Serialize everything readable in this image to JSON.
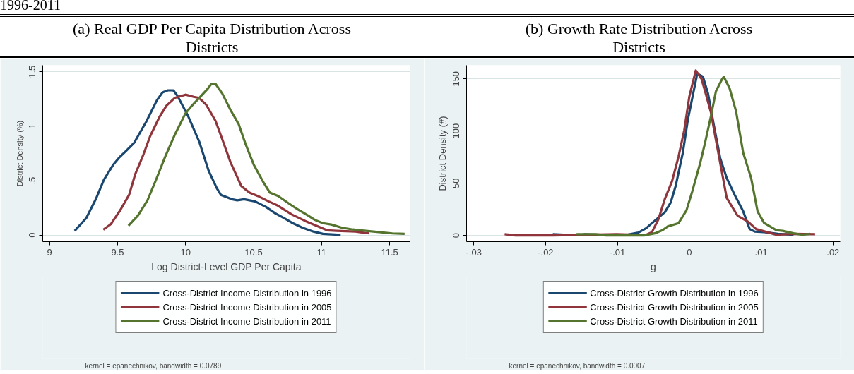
{
  "chart_data": [
    {
      "type": "line",
      "title": "(a) Real GDP Per Capita Distribution Across Districts",
      "xlabel": "Log District-Level GDP Per Capita",
      "ylabel": "District Density (%)",
      "annotations": [
        "1996-2011",
        "kernel = epanechnikov, bandwidth = 0.0789"
      ],
      "xlim": [
        8.95,
        11.65
      ],
      "ylim": [
        -0.06,
        1.56
      ],
      "xticks": [
        9,
        9.5,
        10,
        10.5,
        11,
        11.5
      ],
      "yticks": [
        0,
        {
          "value": 0.5,
          "label": ".5"
        },
        1,
        1.5
      ],
      "grid": "y",
      "legend": "bottom",
      "line_style": "solid",
      "marker": "none",
      "series": [
        {
          "name": "Cross-District Income Distribution in 1996",
          "color": "#1a476f",
          "x": [
            9.185,
            9.27,
            9.34,
            9.4,
            9.47,
            9.51,
            9.56,
            9.623,
            9.71,
            9.79,
            9.83,
            9.87,
            9.91,
            9.94,
            10.02,
            10.1,
            10.17,
            10.23,
            10.26,
            10.34,
            10.38,
            10.43,
            10.51,
            10.59,
            10.66,
            10.72,
            10.78,
            10.86,
            10.94,
            11.01,
            11.14
          ],
          "values": [
            0.04,
            0.157,
            0.33,
            0.51,
            0.65,
            0.71,
            0.77,
            0.85,
            1.04,
            1.24,
            1.31,
            1.33,
            1.33,
            1.28,
            1.09,
            0.86,
            0.59,
            0.43,
            0.37,
            0.33,
            0.32,
            0.33,
            0.31,
            0.26,
            0.2,
            0.16,
            0.115,
            0.068,
            0.033,
            0.012,
            0.002
          ]
        },
        {
          "name": "Cross-District Income Distribution in 2005",
          "color": "#90353b",
          "x": [
            9.395,
            9.45,
            9.52,
            9.585,
            9.63,
            9.69,
            9.74,
            9.81,
            9.86,
            9.92,
            10.0,
            10.06,
            10.1,
            10.15,
            10.22,
            10.27,
            10.33,
            10.41,
            10.47,
            10.53,
            10.61,
            10.68,
            10.78,
            10.88,
            10.96,
            11.04,
            11.11,
            11.25,
            11.35
          ],
          "values": [
            0.05,
            0.1,
            0.23,
            0.37,
            0.56,
            0.74,
            0.91,
            1.09,
            1.19,
            1.26,
            1.29,
            1.27,
            1.26,
            1.2,
            1.05,
            0.88,
            0.67,
            0.45,
            0.39,
            0.36,
            0.31,
            0.27,
            0.19,
            0.13,
            0.087,
            0.045,
            0.04,
            0.033,
            0.016
          ]
        },
        {
          "name": "Cross-District Income Distribution in 2011",
          "color": "#55752f",
          "x": [
            9.58,
            9.65,
            9.72,
            9.79,
            9.85,
            9.92,
            10.0,
            10.04,
            10.1,
            10.16,
            10.19,
            10.22,
            10.27,
            10.33,
            10.39,
            10.44,
            10.5,
            10.57,
            10.62,
            10.68,
            10.76,
            10.82,
            10.9,
            10.95,
            11.01,
            11.07,
            11.15,
            11.23,
            11.38,
            11.52,
            11.61
          ],
          "values": [
            0.087,
            0.18,
            0.32,
            0.53,
            0.72,
            0.92,
            1.12,
            1.18,
            1.26,
            1.34,
            1.39,
            1.39,
            1.3,
            1.15,
            1.02,
            0.84,
            0.65,
            0.49,
            0.39,
            0.36,
            0.29,
            0.24,
            0.18,
            0.14,
            0.11,
            0.098,
            0.068,
            0.052,
            0.033,
            0.016,
            0.012
          ]
        }
      ]
    },
    {
      "type": "line",
      "title": "(b) Growth Rate Distribution Across Districts",
      "xlabel": "g",
      "ylabel": "District Density (#)",
      "annotations": [
        "kernel = epanechnikov, bandwidth = 0.0007"
      ],
      "xlim": [
        -0.031,
        0.021
      ],
      "ylim": [
        -6,
        163
      ],
      "xticks": [
        {
          "value": -0.03,
          "label": "-.03"
        },
        {
          "value": -0.02,
          "label": "-.02"
        },
        {
          "value": -0.01,
          "label": "-.01"
        },
        0,
        {
          "value": 0.01,
          "label": ".01"
        },
        {
          "value": 0.02,
          "label": ".02"
        }
      ],
      "yticks": [
        0,
        50,
        100,
        150
      ],
      "grid": "y",
      "legend": "bottom",
      "line_style": "solid",
      "marker": "none",
      "series": [
        {
          "name": "Cross-District Growth Distribution in 1996",
          "color": "#1a476f",
          "x": [
            -0.019,
            -0.0175,
            -0.0153,
            -0.0145,
            -0.0116,
            -0.0086,
            -0.0071,
            -0.006,
            -0.0052,
            -0.0034,
            -0.0026,
            -0.0019,
            -0.0009,
            -0.0002,
            0.0006,
            0.0011,
            0.0019,
            0.0026,
            0.0034,
            0.0043,
            0.0052,
            0.0063,
            0.0075,
            0.0084,
            0.0091,
            0.0104,
            0.0123,
            0.0145
          ],
          "values": [
            1.2,
            0.7,
            0.2,
            1.2,
            0.2,
            0.7,
            2.7,
            6.9,
            11.8,
            22.3,
            31.4,
            47.4,
            79.3,
            111,
            138,
            155,
            152,
            136,
            106,
            74,
            55,
            39,
            23,
            6.1,
            3.7,
            3.2,
            1.5,
            0.7
          ]
        },
        {
          "name": "Cross-District Growth Distribution in 2005",
          "color": "#90353b",
          "x": [
            -0.0257,
            -0.0242,
            -0.019,
            -0.0101,
            -0.0078,
            -0.006,
            -0.0052,
            -0.0043,
            -0.0034,
            -0.0024,
            -0.0015,
            -0.0007,
            0.0,
            0.0009,
            0.0017,
            0.0022,
            0.003,
            0.0037,
            0.0045,
            0.0052,
            0.0067,
            0.0082,
            0.0093,
            0.0108,
            0.0121,
            0.0145,
            0.0175
          ],
          "values": [
            1.2,
            0,
            0,
            1.2,
            0.7,
            0.7,
            3.2,
            15.5,
            35,
            52,
            75.6,
            101,
            133,
            158,
            150,
            138,
            118,
            91.6,
            62,
            36,
            19,
            13,
            6.1,
            3.2,
            0.7,
            1.5,
            1.2
          ]
        },
        {
          "name": "Cross-District Growth Distribution in 2011",
          "color": "#55752f",
          "x": [
            -0.0157,
            -0.013,
            -0.0116,
            -0.0063,
            -0.0048,
            -0.0037,
            -0.003,
            -0.0015,
            -0.0004,
            0.0004,
            0.0015,
            0.0022,
            0.003,
            0.0037,
            0.0045,
            0.0048,
            0.0056,
            0.0065,
            0.0075,
            0.0086,
            0.0095,
            0.0104,
            0.0121,
            0.013,
            0.0145,
            0.0157,
            0.0168
          ],
          "values": [
            1.2,
            1.2,
            0,
            0,
            2,
            5.2,
            8.6,
            11.8,
            24,
            42,
            69,
            89,
            114,
            138,
            149,
            152,
            141,
            119,
            79,
            55,
            23,
            12,
            5,
            4.4,
            2,
            0.7,
            1.5
          ]
        }
      ]
    }
  ]
}
